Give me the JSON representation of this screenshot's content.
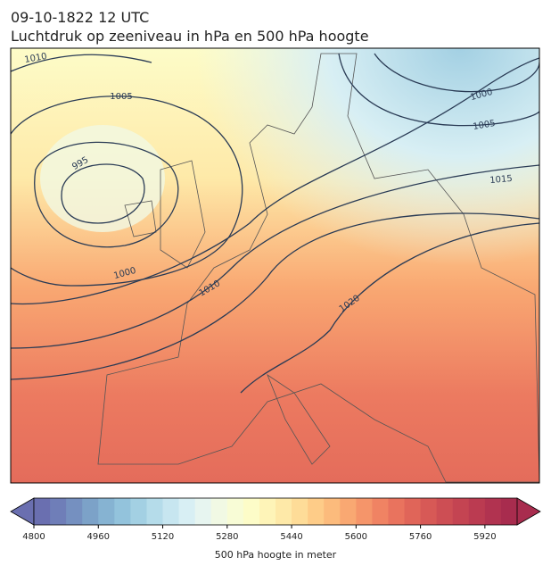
{
  "header": {
    "title": "09-10-1822 12 UTC",
    "subtitle": "Luchtdruk op zeeniveau in hPa en 500 hPa hoogte"
  },
  "isobars": {
    "labels": [
      "1010",
      "1005",
      "995",
      "1000",
      "1010",
      "1020",
      "1000",
      "1005",
      "1015"
    ]
  },
  "colorbar": {
    "label": "500 hPa hoogte in meter",
    "range": [
      4800,
      6000
    ],
    "ticks": [
      4800,
      4960,
      5120,
      5280,
      5440,
      5600,
      5760,
      5920
    ],
    "colors": [
      "#6a6fb0",
      "#6f7eb8",
      "#7590c0",
      "#7ca2c8",
      "#86b3d2",
      "#93c3dc",
      "#a3d0e3",
      "#b5dcea",
      "#c7e6f0",
      "#d8eff4",
      "#e7f5f0",
      "#f1f9e4",
      "#f8fcd6",
      "#fdfcc8",
      "#fef4b8",
      "#fee9a8",
      "#fedc98",
      "#fecc88",
      "#fcbb7c",
      "#f9a872",
      "#f5956a",
      "#f08363",
      "#e9735e",
      "#e06559",
      "#d75956",
      "#cd4e54",
      "#c44452",
      "#bb3b51",
      "#b13350",
      "#a82c4e"
    ]
  }
}
